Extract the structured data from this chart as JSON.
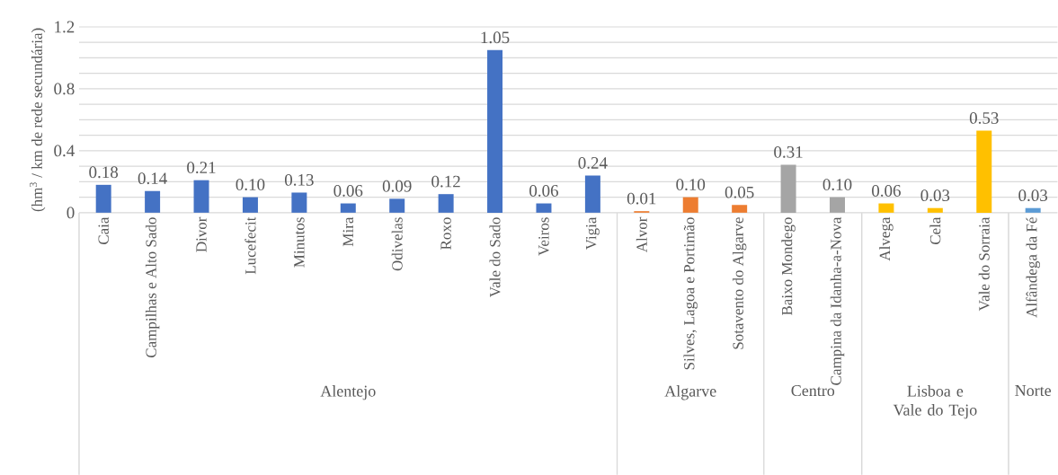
{
  "chart_data": {
    "type": "bar",
    "ylabel": "(hm$^{3}$ / km de rede secundária)",
    "categories": [
      "Caia",
      "Campilhas e Alto Sado",
      "Divor",
      "Lucefecit",
      "Minutos",
      "Mira",
      "Odivelas",
      "Roxo",
      "Vale do Sado",
      "Veiros",
      "Vigia",
      "Alvor",
      "Silves, Lagoa e Portimão",
      "Sotavento do Algarve",
      "Baixo Mondego",
      "Campina da Idanha-a-Nova",
      "Alvega",
      "Cela",
      "Vale do Sorraia",
      "Alfândega da Fé"
    ],
    "values": [
      0.18,
      0.14,
      0.21,
      0.1,
      0.13,
      0.06,
      0.09,
      0.12,
      1.05,
      0.06,
      0.24,
      0.01,
      0.1,
      0.05,
      0.31,
      0.1,
      0.06,
      0.03,
      0.53,
      0.03
    ],
    "value_labels": [
      "0.18",
      "0.14",
      "0.21",
      "0.10",
      "0.13",
      "0.06",
      "0.09",
      "0.12",
      "1.05",
      "0.06",
      "0.24",
      "0.01",
      "0.10",
      "0.05",
      "0.31",
      "0.10",
      "0.06",
      "0.03",
      "0.53",
      "0.03"
    ],
    "colors": [
      "#4472c4",
      "#4472c4",
      "#4472c4",
      "#4472c4",
      "#4472c4",
      "#4472c4",
      "#4472c4",
      "#4472c4",
      "#4472c4",
      "#4472c4",
      "#4472c4",
      "#ed7d31",
      "#ed7d31",
      "#ed7d31",
      "#a5a5a5",
      "#a5a5a5",
      "#ffc000",
      "#ffc000",
      "#ffc000",
      "#5b9bd5"
    ],
    "annotations": [
      "Alentejo",
      "Algarve",
      "Centro",
      "Lisboa e Vale do Tejo",
      "Norte"
    ],
    "ylim": [
      0,
      1.2
    ],
    "yticks": [
      0,
      {
        "value": 0.1,
        "label": null
      },
      {
        "value": 0.2,
        "label": null
      },
      {
        "value": 0.3,
        "label": null
      },
      0.4,
      {
        "value": 0.5,
        "label": null
      },
      {
        "value": 0.6,
        "label": null
      },
      {
        "value": 0.7,
        "label": null
      },
      0.8,
      {
        "value": 0.9,
        "label": null
      },
      {
        "value": 1.0,
        "label": null
      },
      {
        "value": 1.1,
        "label": null
      },
      1.2
    ],
    "grid": "y"
  }
}
